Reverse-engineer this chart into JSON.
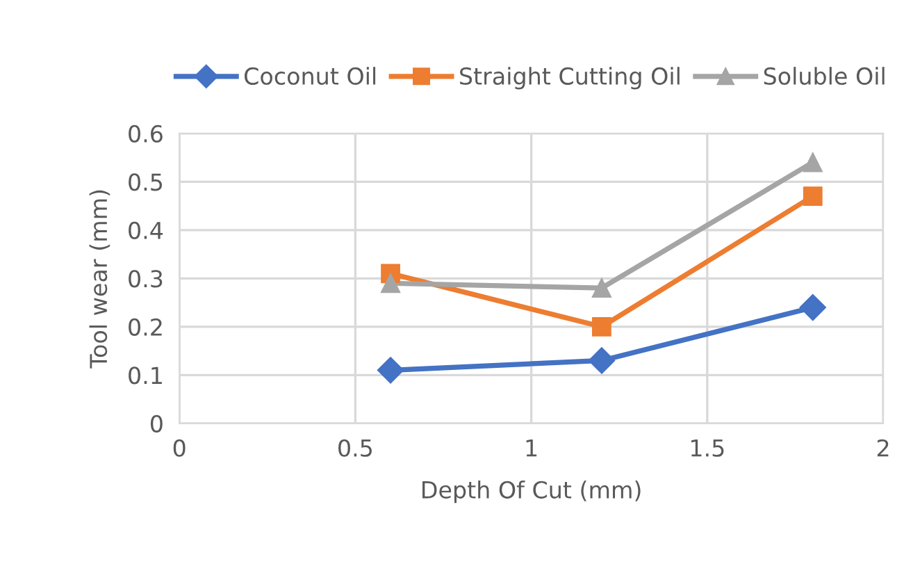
{
  "chart_data": {
    "type": "line",
    "xlabel": "Depth Of Cut (mm)",
    "ylabel": "Tool wear (mm)",
    "x": [
      0.6,
      1.2,
      1.8
    ],
    "series": [
      {
        "name": "Coconut Oil",
        "color": "#4472c4",
        "marker": "diamond",
        "values": [
          0.11,
          0.13,
          0.24
        ]
      },
      {
        "name": "Straight Cutting Oil",
        "color": "#ed7d31",
        "marker": "square",
        "values": [
          0.31,
          0.2,
          0.47
        ]
      },
      {
        "name": "Soluble Oil",
        "color": "#a5a5a5",
        "marker": "triangle",
        "values": [
          0.29,
          0.28,
          0.54
        ]
      }
    ],
    "xlim": [
      0,
      2
    ],
    "xticks": [
      0,
      0.5,
      1,
      1.5,
      2
    ],
    "ylim": [
      0,
      0.6
    ],
    "yticks": [
      0,
      0.1,
      0.2,
      0.3,
      0.4,
      0.5,
      0.6
    ],
    "grid": true,
    "legend": "top",
    "line_style": "solid"
  }
}
